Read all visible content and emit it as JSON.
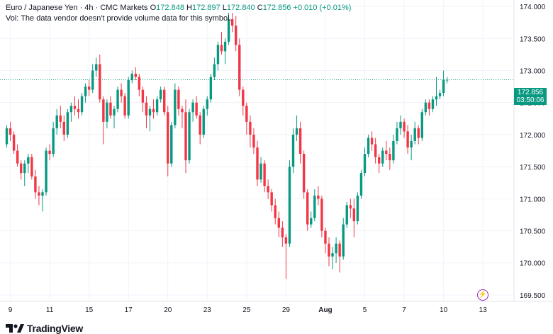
{
  "legend": {
    "symbol": "Euro / Japanese Yen · 4h · CMC Markets",
    "open_label": "O",
    "open": "172.848",
    "high_label": "H",
    "high": "172.897",
    "low_label": "L",
    "low": "172.840",
    "close_label": "C",
    "close": "172.856",
    "change": "+0.010 (+0.01%)",
    "volume_note": "Vol: The data vendor doesn't provide volume data for this symbol."
  },
  "last_price": {
    "price": "172.856",
    "countdown": "03:50:06"
  },
  "brand": {
    "name": "TradingView"
  },
  "colors": {
    "up": "#089981",
    "down": "#f23645",
    "grid": "#f0f3fa",
    "text": "#131722"
  },
  "chart_data": {
    "type": "candlestick",
    "interval": "4h",
    "y_axis": {
      "min": 169.4,
      "max": 174.1,
      "ticks": [
        169.5,
        170.0,
        170.5,
        171.0,
        171.5,
        172.0,
        172.5,
        173.0,
        173.5,
        174.0
      ],
      "tick_labels": [
        "169.500",
        "170.000",
        "170.500",
        "171.000",
        "171.500",
        "172.000",
        "172.500",
        "173.000",
        "173.500",
        "174.000"
      ]
    },
    "x_axis": {
      "labels": [
        "9",
        "11",
        "15",
        "17",
        "20",
        "23",
        "25",
        "29",
        "Aug",
        "5",
        "7",
        "10",
        "13"
      ],
      "label_candle_index": [
        1,
        12,
        23,
        34,
        45,
        56,
        67,
        78,
        89,
        100,
        111,
        122,
        133
      ]
    },
    "last_price_line": 172.856,
    "candles": [
      [
        171.85,
        172.15,
        171.8,
        172.1
      ],
      [
        172.1,
        172.2,
        171.9,
        172.0
      ],
      [
        172.0,
        172.05,
        171.7,
        171.75
      ],
      [
        171.75,
        171.85,
        171.5,
        171.55
      ],
      [
        171.55,
        171.6,
        171.3,
        171.4
      ],
      [
        171.4,
        171.6,
        171.2,
        171.55
      ],
      [
        171.55,
        171.7,
        171.4,
        171.65
      ],
      [
        171.65,
        171.7,
        171.3,
        171.35
      ],
      [
        171.35,
        171.45,
        171.0,
        171.1
      ],
      [
        171.1,
        171.2,
        170.9,
        171.05
      ],
      [
        171.05,
        171.15,
        170.8,
        171.1
      ],
      [
        171.1,
        171.8,
        171.05,
        171.75
      ],
      [
        171.75,
        171.85,
        171.6,
        171.7
      ],
      [
        171.7,
        172.2,
        171.65,
        172.1
      ],
      [
        172.1,
        172.4,
        172.0,
        172.3
      ],
      [
        172.3,
        172.45,
        172.1,
        172.2
      ],
      [
        172.2,
        172.3,
        171.9,
        172.0
      ],
      [
        172.0,
        172.4,
        171.95,
        172.35
      ],
      [
        172.35,
        172.5,
        172.2,
        172.45
      ],
      [
        172.45,
        172.6,
        172.3,
        172.4
      ],
      [
        172.4,
        172.55,
        172.25,
        172.35
      ],
      [
        172.35,
        172.65,
        172.3,
        172.6
      ],
      [
        172.6,
        172.8,
        172.5,
        172.75
      ],
      [
        172.75,
        172.85,
        172.6,
        172.7
      ],
      [
        172.7,
        173.1,
        172.65,
        173.0
      ],
      [
        173.0,
        173.2,
        172.9,
        173.1
      ],
      [
        173.1,
        173.25,
        172.5,
        172.55
      ],
      [
        172.55,
        172.6,
        171.85,
        172.2
      ],
      [
        172.2,
        172.55,
        172.1,
        172.5
      ],
      [
        172.5,
        172.6,
        172.25,
        172.3
      ],
      [
        172.3,
        172.45,
        172.1,
        172.4
      ],
      [
        172.4,
        172.75,
        172.35,
        172.7
      ],
      [
        172.7,
        172.8,
        172.5,
        172.6
      ],
      [
        172.6,
        172.65,
        172.25,
        172.3
      ],
      [
        172.3,
        172.9,
        172.25,
        172.85
      ],
      [
        172.85,
        173.0,
        172.8,
        172.95
      ],
      [
        172.95,
        173.05,
        172.85,
        172.9
      ],
      [
        172.9,
        172.95,
        172.6,
        172.7
      ],
      [
        172.7,
        172.75,
        172.35,
        172.5
      ],
      [
        172.5,
        172.6,
        172.1,
        172.3
      ],
      [
        172.3,
        172.45,
        172.05,
        172.4
      ],
      [
        172.4,
        172.55,
        172.25,
        172.35
      ],
      [
        172.35,
        172.6,
        172.3,
        172.55
      ],
      [
        172.55,
        172.75,
        172.5,
        172.7
      ],
      [
        172.7,
        172.75,
        172.3,
        172.35
      ],
      [
        172.35,
        172.45,
        171.35,
        171.55
      ],
      [
        171.55,
        172.2,
        171.5,
        172.15
      ],
      [
        172.15,
        172.8,
        172.1,
        172.7
      ],
      [
        172.7,
        172.75,
        172.3,
        172.4
      ],
      [
        172.4,
        172.45,
        172.1,
        172.35
      ],
      [
        172.35,
        172.55,
        171.4,
        171.6
      ],
      [
        171.6,
        172.4,
        171.55,
        172.35
      ],
      [
        172.35,
        172.55,
        172.2,
        172.5
      ],
      [
        172.5,
        172.6,
        172.25,
        172.3
      ],
      [
        172.3,
        172.35,
        171.85,
        172.0
      ],
      [
        172.0,
        172.45,
        171.95,
        172.4
      ],
      [
        172.4,
        172.6,
        172.3,
        172.55
      ],
      [
        172.55,
        172.95,
        172.5,
        172.9
      ],
      [
        172.9,
        173.2,
        172.85,
        173.1
      ],
      [
        173.1,
        173.45,
        173.0,
        173.4
      ],
      [
        173.4,
        173.6,
        173.25,
        173.3
      ],
      [
        173.3,
        173.5,
        173.1,
        173.45
      ],
      [
        173.45,
        173.9,
        173.4,
        173.8
      ],
      [
        173.8,
        173.9,
        173.6,
        173.7
      ],
      [
        173.7,
        173.85,
        173.3,
        173.4
      ],
      [
        173.4,
        173.5,
        172.6,
        172.7
      ],
      [
        172.7,
        172.75,
        172.3,
        172.45
      ],
      [
        172.45,
        172.5,
        172.0,
        172.2
      ],
      [
        172.2,
        172.3,
        171.8,
        172.0
      ],
      [
        172.0,
        172.1,
        171.7,
        171.8
      ],
      [
        171.8,
        171.9,
        171.2,
        171.3
      ],
      [
        171.3,
        171.65,
        171.25,
        171.55
      ],
      [
        171.55,
        171.6,
        171.1,
        171.2
      ],
      [
        171.2,
        171.3,
        171.0,
        171.1
      ],
      [
        171.1,
        171.15,
        170.8,
        170.9
      ],
      [
        170.9,
        171.0,
        170.6,
        170.7
      ],
      [
        170.7,
        170.8,
        170.4,
        170.55
      ],
      [
        170.55,
        170.65,
        170.25,
        170.4
      ],
      [
        170.4,
        170.45,
        169.75,
        170.3
      ],
      [
        170.3,
        171.6,
        170.25,
        171.5
      ],
      [
        171.5,
        172.1,
        171.4,
        172.0
      ],
      [
        172.0,
        172.3,
        171.9,
        172.1
      ],
      [
        172.1,
        172.2,
        171.55,
        171.7
      ],
      [
        171.7,
        171.75,
        171.0,
        171.1
      ],
      [
        171.1,
        171.15,
        170.5,
        170.6
      ],
      [
        170.6,
        170.8,
        170.55,
        170.7
      ],
      [
        170.7,
        171.15,
        170.65,
        171.05
      ],
      [
        171.05,
        171.2,
        170.9,
        171.0
      ],
      [
        171.0,
        171.05,
        170.4,
        170.5
      ],
      [
        170.5,
        170.55,
        170.15,
        170.3
      ],
      [
        170.3,
        170.4,
        169.95,
        170.1
      ],
      [
        170.1,
        170.25,
        169.9,
        170.15
      ],
      [
        170.15,
        170.4,
        170.0,
        170.3
      ],
      [
        170.3,
        170.35,
        169.85,
        170.1
      ],
      [
        170.1,
        170.7,
        170.05,
        170.6
      ],
      [
        170.6,
        170.95,
        170.55,
        170.9
      ],
      [
        170.9,
        171.0,
        170.7,
        170.85
      ],
      [
        170.85,
        171.0,
        170.4,
        170.65
      ],
      [
        170.65,
        171.1,
        170.6,
        171.05
      ],
      [
        171.05,
        171.45,
        171.0,
        171.4
      ],
      [
        171.4,
        171.8,
        171.35,
        171.7
      ],
      [
        171.7,
        172.0,
        171.65,
        171.95
      ],
      [
        171.95,
        172.05,
        171.75,
        171.85
      ],
      [
        171.85,
        171.95,
        171.55,
        171.65
      ],
      [
        171.65,
        171.7,
        171.4,
        171.55
      ],
      [
        171.55,
        171.8,
        171.5,
        171.75
      ],
      [
        171.75,
        171.9,
        171.6,
        171.7
      ],
      [
        171.7,
        171.8,
        171.45,
        171.6
      ],
      [
        171.6,
        172.0,
        171.55,
        171.9
      ],
      [
        171.9,
        172.2,
        171.85,
        172.1
      ],
      [
        172.1,
        172.3,
        172.0,
        172.2
      ],
      [
        172.2,
        172.25,
        171.95,
        172.05
      ],
      [
        172.05,
        172.15,
        171.7,
        171.8
      ],
      [
        171.8,
        172.0,
        171.6,
        171.9
      ],
      [
        171.9,
        172.2,
        171.85,
        172.1
      ],
      [
        172.1,
        172.15,
        171.85,
        171.95
      ],
      [
        171.95,
        172.4,
        171.9,
        172.35
      ],
      [
        172.35,
        172.55,
        172.3,
        172.5
      ],
      [
        172.5,
        172.55,
        172.3,
        172.4
      ],
      [
        172.4,
        172.6,
        172.35,
        172.55
      ],
      [
        172.55,
        172.9,
        172.45,
        172.6
      ],
      [
        172.6,
        172.7,
        172.55,
        172.65
      ],
      [
        172.65,
        173.0,
        172.6,
        172.85
      ],
      [
        172.85,
        172.9,
        172.8,
        172.856
      ]
    ]
  }
}
